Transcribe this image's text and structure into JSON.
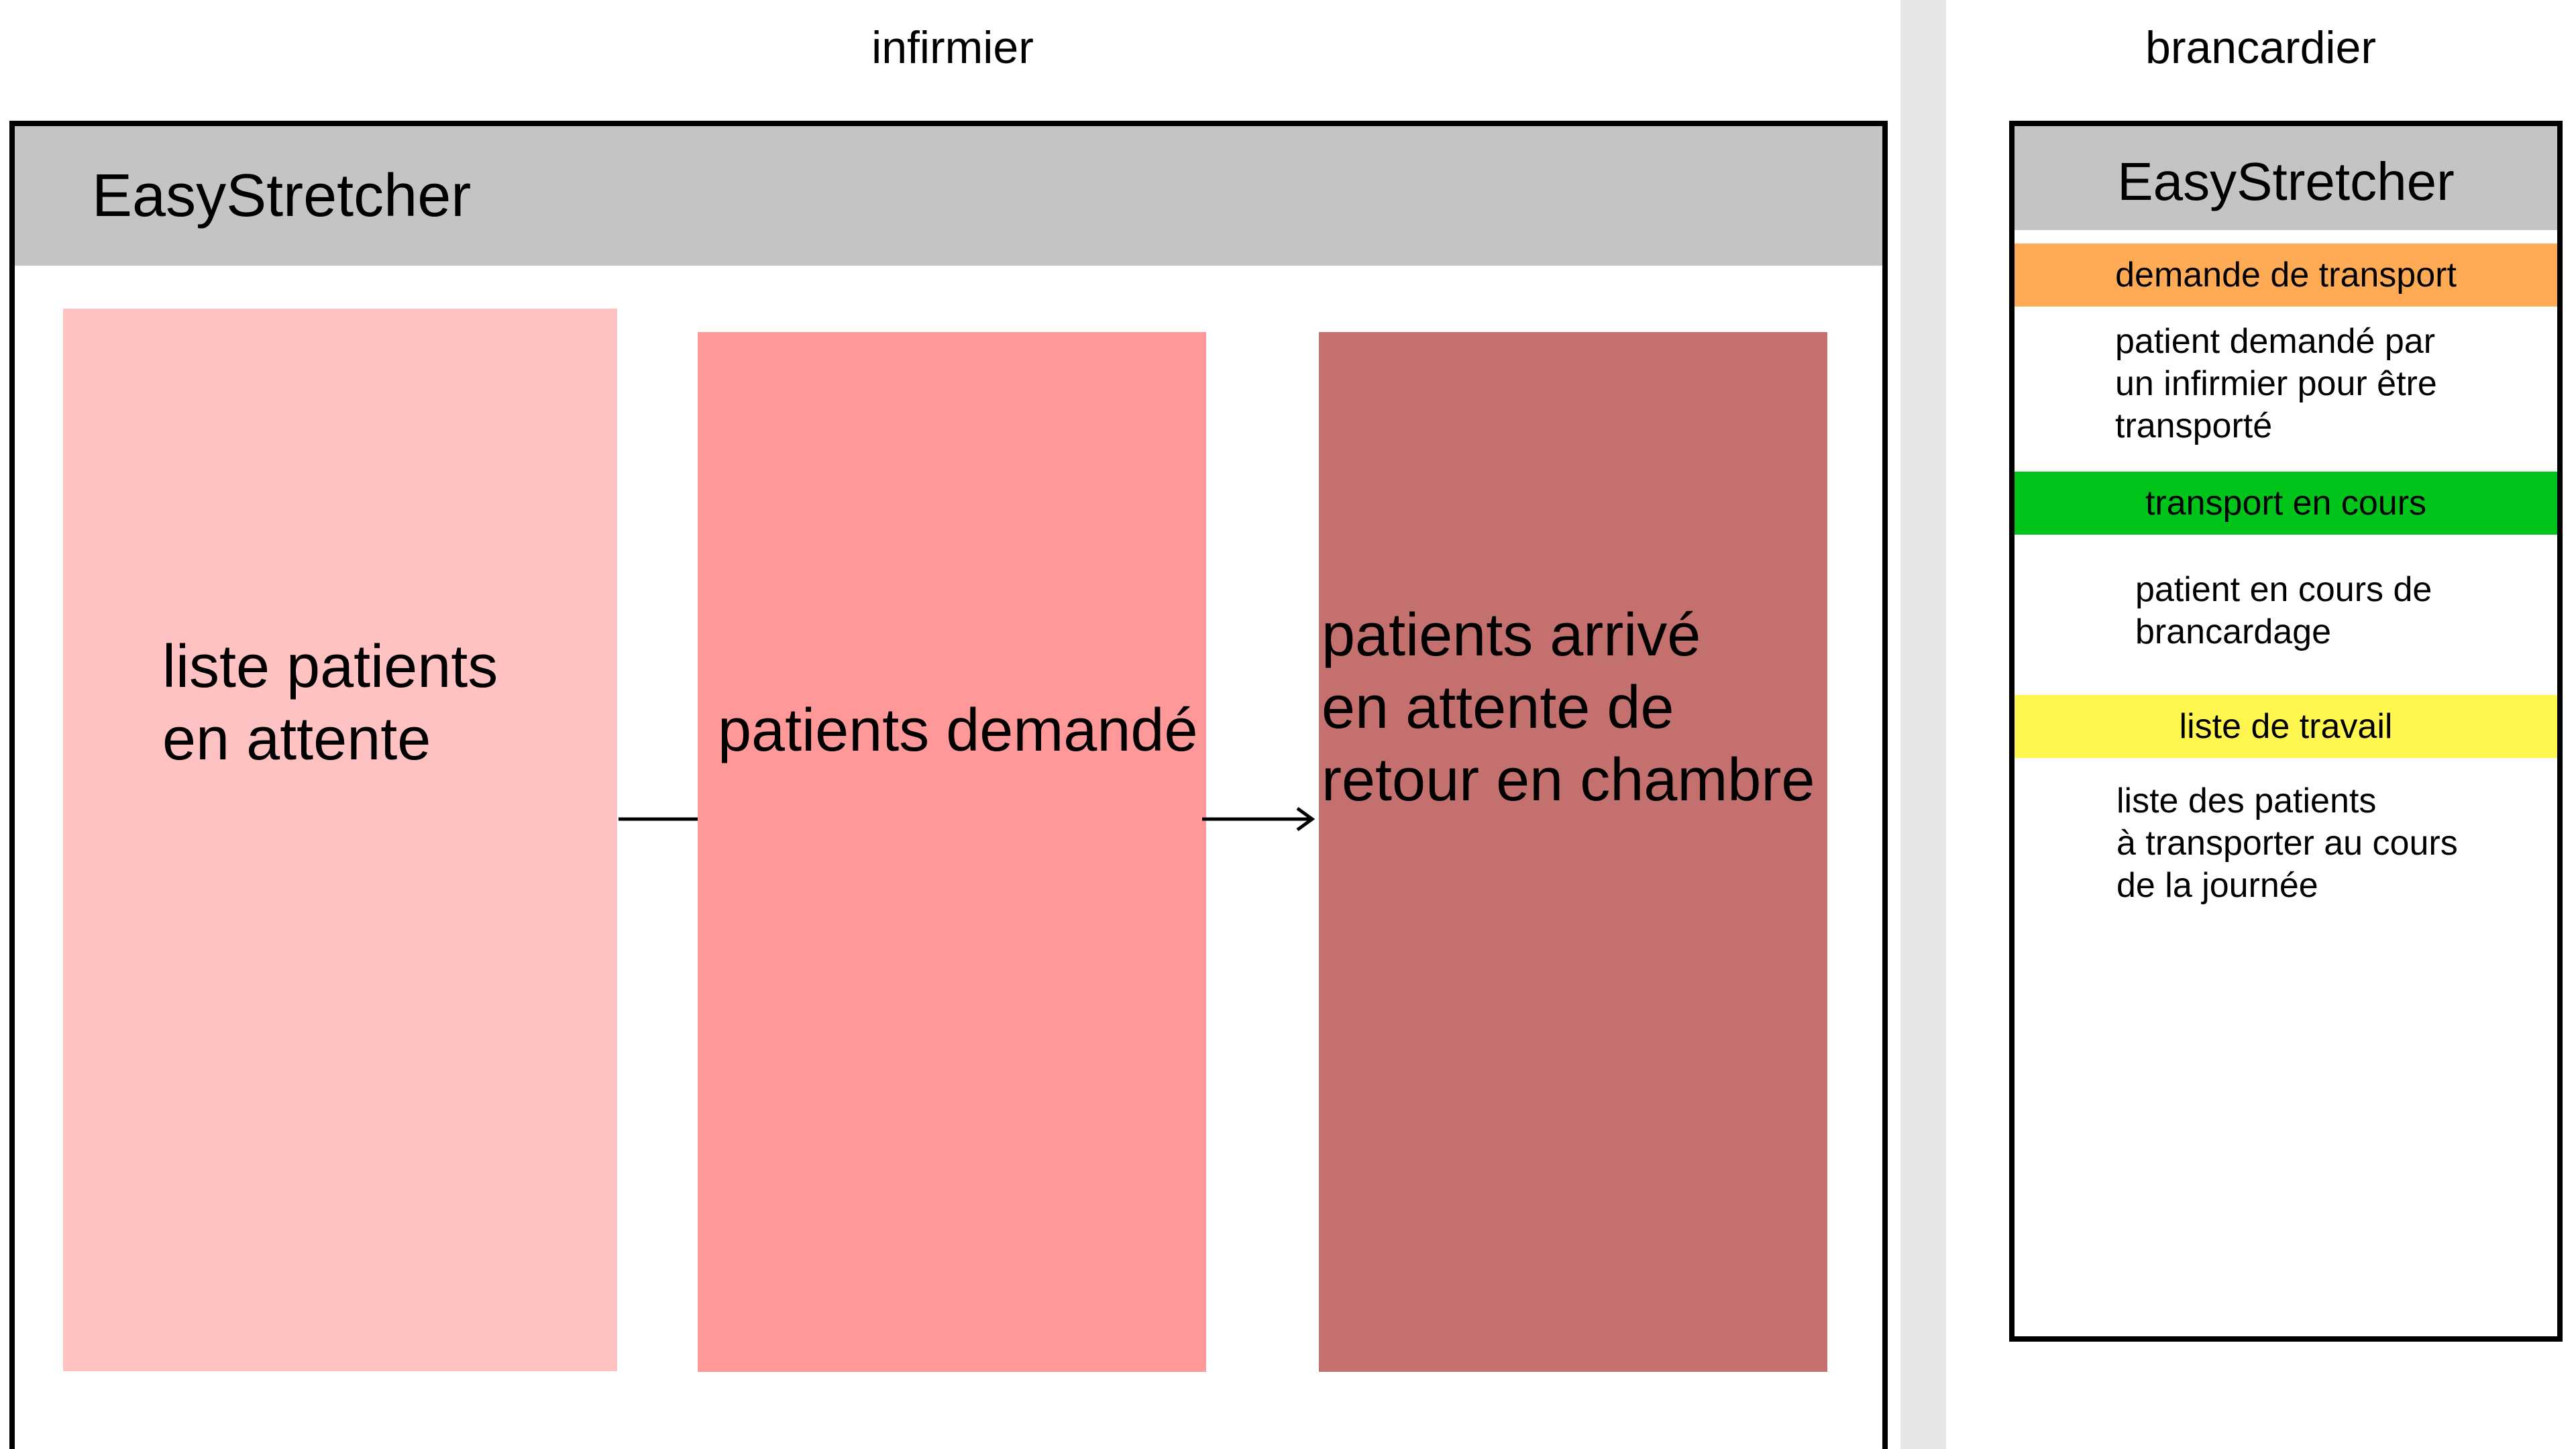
{
  "roles": {
    "nurse": "infirmier",
    "porter": "brancardier"
  },
  "nurse_app": {
    "title": "EasyStretcher",
    "columns": [
      {
        "label": "liste patients\nen attente",
        "color": "#ffc2c2"
      },
      {
        "label": "patients demandé",
        "color": "#ff9999"
      },
      {
        "label": "patients arrivé\nen attente de\nretour en chambre",
        "color": "#c4706e"
      }
    ]
  },
  "porter_app": {
    "title": "EasyStretcher",
    "sections": [
      {
        "tab": "demande de transport",
        "color": "#ffaa55",
        "description": "patient demandé par\nun infirmier pour être\ntransporté"
      },
      {
        "tab": "transport en cours",
        "color": "#00c41a",
        "description": "patient en cours de\nbrancardage"
      },
      {
        "tab": "liste de travail",
        "color": "#fff64f",
        "description": "liste des patients\nà transporter au cours\nde la journée"
      }
    ]
  }
}
